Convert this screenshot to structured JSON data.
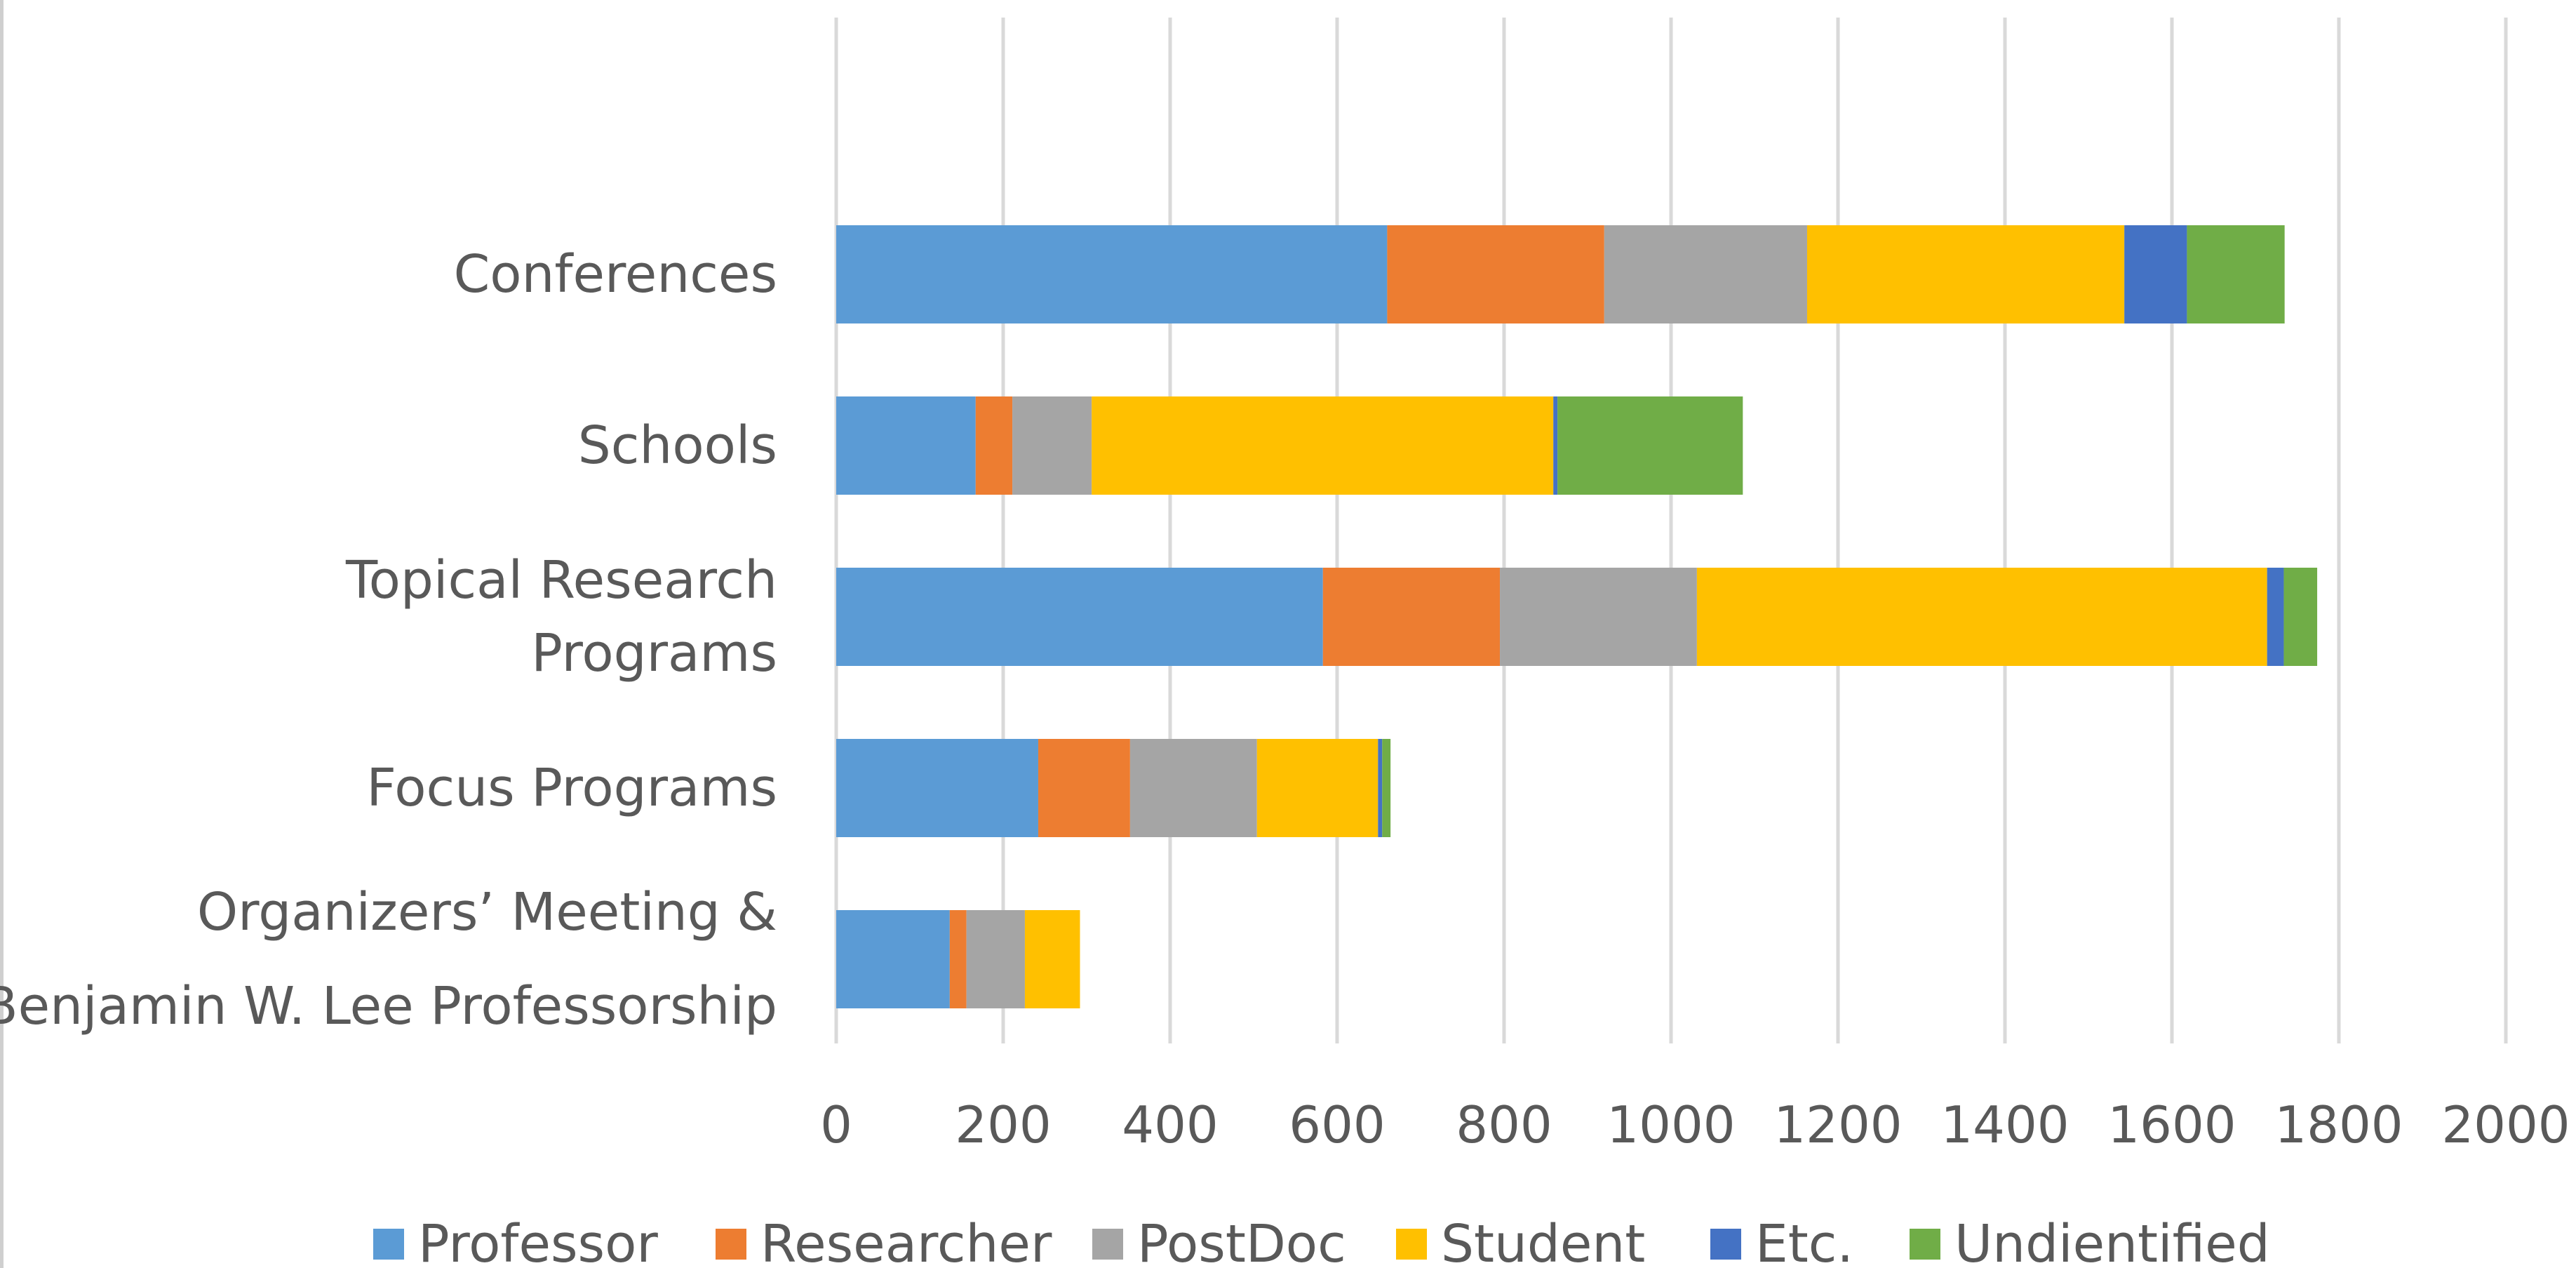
{
  "chart_data": {
    "type": "bar",
    "orientation": "horizontal",
    "stacked": true,
    "title": "",
    "xlabel": "",
    "ylabel": "",
    "xlim": [
      0,
      2000
    ],
    "x_ticks": [
      "0",
      "200",
      "400",
      "600",
      "800",
      "1000",
      "1200",
      "1400",
      "1600",
      "1800",
      "2000"
    ],
    "grid": "vertical",
    "legend_position": "bottom",
    "categories": [
      {
        "lines": [
          "Conferences"
        ]
      },
      {
        "lines": [
          "Schools"
        ]
      },
      {
        "lines": [
          "Topical Research",
          "Programs"
        ]
      },
      {
        "lines": [
          "Focus Programs"
        ]
      },
      {
        "lines": [
          "Organizers’ Meeting &",
          "Benjamin W. Lee Professorship"
        ]
      }
    ],
    "series": [
      {
        "name": "Professor",
        "color": "#5b9bd5",
        "values": [
          660,
          167,
          583,
          242,
          136
        ]
      },
      {
        "name": "Researcher",
        "color": "#ed7d31",
        "values": [
          260,
          44,
          212,
          110,
          20
        ]
      },
      {
        "name": "PostDoc",
        "color": "#a5a5a5",
        "values": [
          243,
          95,
          236,
          152,
          70
        ]
      },
      {
        "name": "Student",
        "color": "#ffc000",
        "values": [
          380,
          553,
          683,
          145,
          66
        ]
      },
      {
        "name": "Etc.",
        "color": "#4472c4",
        "values": [
          75,
          5,
          20,
          5,
          0
        ]
      },
      {
        "name": "Undientified",
        "color": "#70ad47",
        "values": [
          117,
          222,
          40,
          10,
          0
        ]
      }
    ]
  }
}
